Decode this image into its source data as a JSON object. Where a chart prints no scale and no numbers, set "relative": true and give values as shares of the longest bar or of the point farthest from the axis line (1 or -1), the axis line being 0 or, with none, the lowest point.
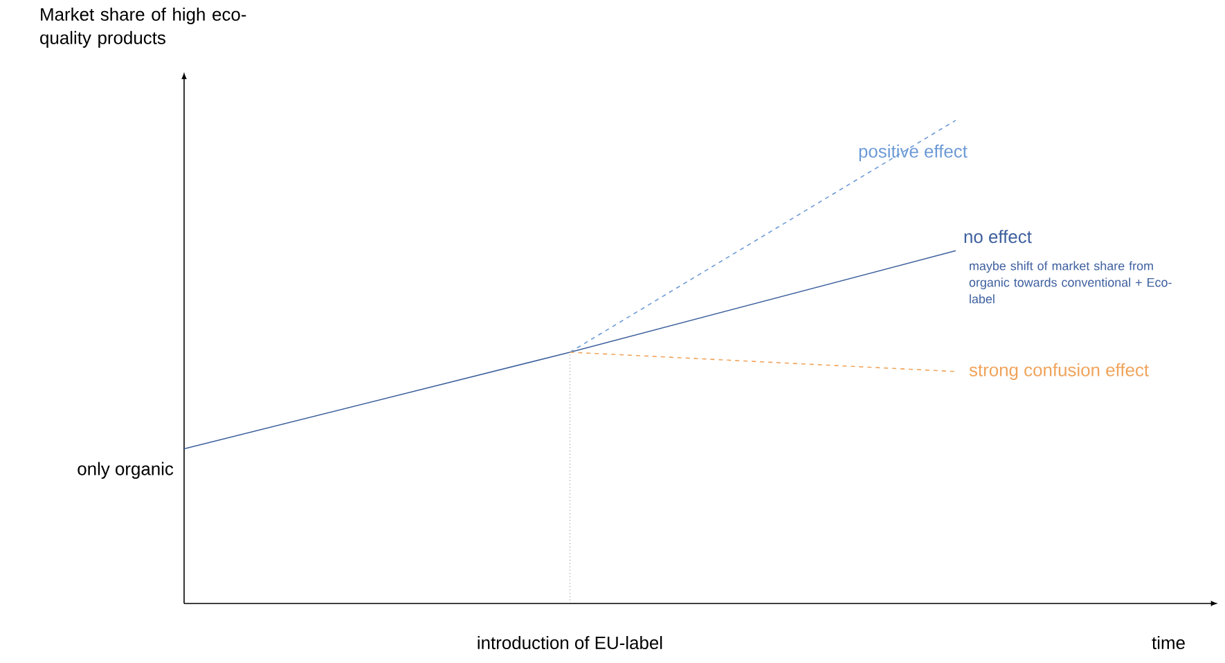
{
  "chart_data": {
    "type": "line",
    "relative": true,
    "ylabel": "Market share of high eco-quality products",
    "xlabel": "time",
    "categories": [
      null,
      null,
      null
    ],
    "series": [
      {
        "name": "no effect",
        "color": "#3d5f9e",
        "line_style": "solid",
        "values": [
          0.32,
          0.52,
          0.73
        ]
      },
      {
        "name": "positive effect",
        "color": "#6c9ad6",
        "line_style": "dashed",
        "values": [
          null,
          0.52,
          1.0
        ]
      },
      {
        "name": "strong confusion effect",
        "color": "#f0a35a",
        "line_style": "dashed",
        "values": [
          null,
          0.52,
          0.48
        ]
      }
    ],
    "annotations": [
      "maybe shift of market share from organic towards conventional + Eco-label",
      "only organic",
      "introduction of EU-label"
    ]
  }
}
